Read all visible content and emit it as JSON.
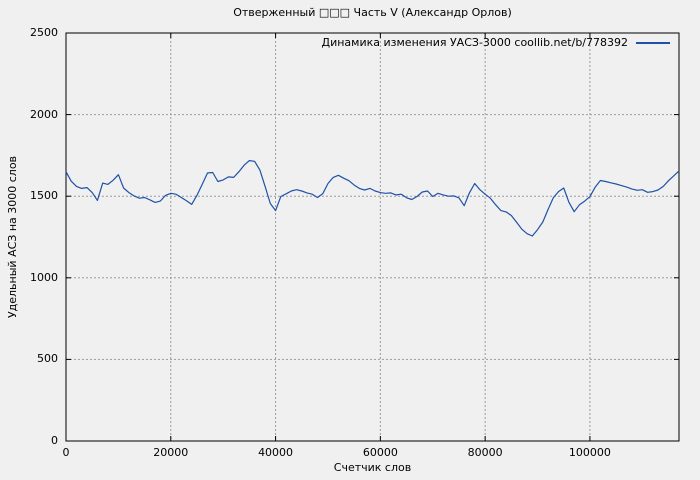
{
  "colors": {
    "background": "#f0f0f0",
    "line": "#1f51a8",
    "grid": "#9a9a9a",
    "axis": "#000000",
    "text": "#000000"
  },
  "legend": {
    "label": "Динамика изменения УАСЗ-3000 coollib.net/b/778392"
  },
  "chart_data": {
    "type": "line",
    "title": "Отверженный □□□ Часть V (Александр Орлов)",
    "xlabel": "Счетчик слов",
    "ylabel": "Удельный АСЗ на 3000 слов",
    "xlim": [
      0,
      117000
    ],
    "ylim": [
      0,
      2500
    ],
    "xticks": [
      0,
      20000,
      40000,
      60000,
      80000,
      100000
    ],
    "xtick_labels": [
      "0",
      "20000",
      "40000",
      "60000",
      "80000",
      "100000"
    ],
    "yticks": [
      0,
      500,
      1000,
      1500,
      2000,
      2500
    ],
    "ytick_labels": [
      "0",
      "500",
      "1000",
      "1500",
      "2000",
      "2500"
    ],
    "grid": true,
    "legend_position": "top-right",
    "series": [
      {
        "name": "Динамика изменения УАСЗ-3000 coollib.net/b/778392",
        "color": "#1f51a8",
        "x": [
          0,
          1000,
          2000,
          3000,
          4000,
          5000,
          6000,
          7000,
          8000,
          9000,
          10000,
          11000,
          12000,
          13000,
          14000,
          15000,
          16000,
          17000,
          18000,
          19000,
          20000,
          21000,
          22000,
          23000,
          24000,
          25000,
          26000,
          27000,
          28000,
          29000,
          30000,
          31000,
          32000,
          33000,
          34000,
          35000,
          36000,
          37000,
          38000,
          39000,
          40000,
          41000,
          42000,
          43000,
          44000,
          45000,
          46000,
          47000,
          48000,
          49000,
          50000,
          51000,
          52000,
          53000,
          54000,
          55000,
          56000,
          57000,
          58000,
          59000,
          60000,
          61000,
          62000,
          63000,
          64000,
          65000,
          66000,
          67000,
          68000,
          69000,
          70000,
          71000,
          72000,
          73000,
          74000,
          75000,
          76000,
          77000,
          78000,
          79000,
          80000,
          81000,
          82000,
          83000,
          84000,
          85000,
          86000,
          87000,
          88000,
          89000,
          90000,
          91000,
          92000,
          93000,
          94000,
          95000,
          96000,
          97000,
          98000,
          99000,
          100000,
          101000,
          102000,
          103000,
          104000,
          105000,
          106000,
          107000,
          108000,
          109000,
          110000,
          111000,
          112000,
          113000,
          114000,
          115000,
          116000,
          117000
        ],
        "y": [
          1650,
          1592,
          1560,
          1548,
          1553,
          1522,
          1474,
          1580,
          1572,
          1598,
          1632,
          1550,
          1522,
          1502,
          1488,
          1492,
          1478,
          1462,
          1470,
          1505,
          1518,
          1512,
          1492,
          1472,
          1450,
          1506,
          1572,
          1642,
          1645,
          1590,
          1600,
          1618,
          1615,
          1650,
          1690,
          1718,
          1714,
          1660,
          1560,
          1455,
          1412,
          1498,
          1515,
          1532,
          1540,
          1532,
          1520,
          1512,
          1492,
          1515,
          1578,
          1615,
          1628,
          1610,
          1595,
          1568,
          1548,
          1538,
          1548,
          1532,
          1522,
          1518,
          1520,
          1508,
          1512,
          1490,
          1480,
          1498,
          1526,
          1532,
          1498,
          1518,
          1508,
          1500,
          1502,
          1490,
          1442,
          1520,
          1578,
          1540,
          1512,
          1488,
          1448,
          1412,
          1404,
          1382,
          1340,
          1298,
          1270,
          1256,
          1295,
          1342,
          1418,
          1490,
          1528,
          1550,
          1462,
          1405,
          1448,
          1470,
          1497,
          1556,
          1596,
          1590,
          1582,
          1575,
          1565,
          1556,
          1545,
          1536,
          1540,
          1524,
          1528,
          1538,
          1560,
          1595,
          1625,
          1655
        ]
      }
    ]
  }
}
